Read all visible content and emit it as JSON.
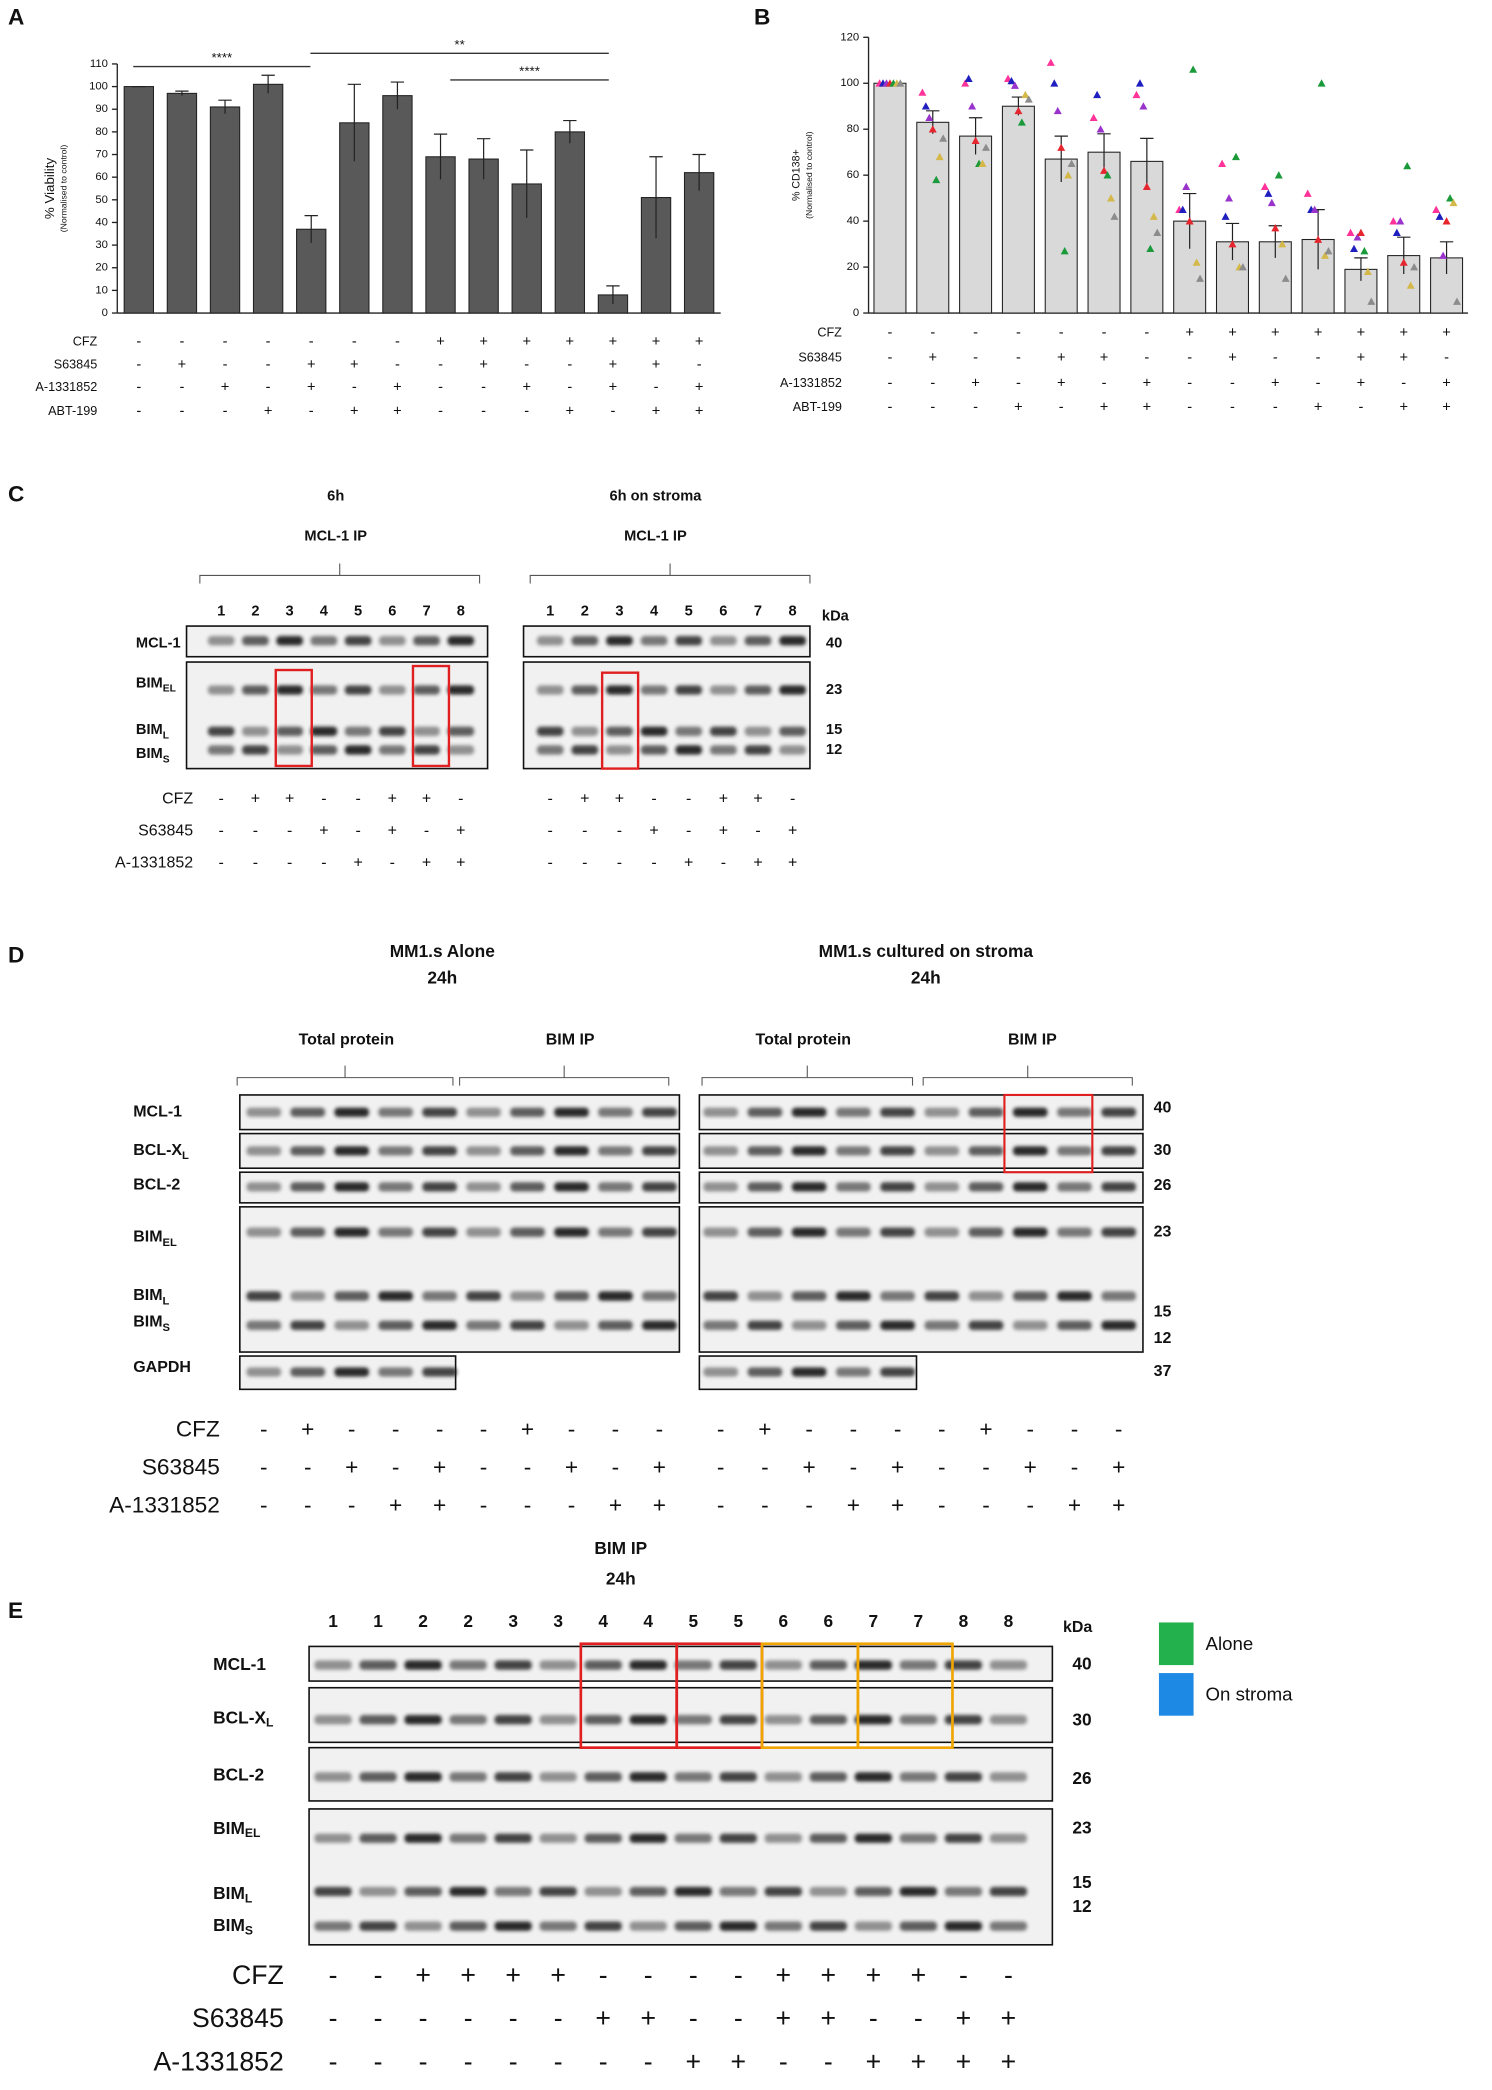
{
  "chart_data": [
    {
      "type": "bar",
      "panel": "A",
      "y_label": "% Viability",
      "y_sublabel": "(Normalised to control)",
      "categories": [
        null,
        null,
        null,
        null,
        null,
        null,
        null,
        null,
        null,
        null,
        null,
        null,
        null,
        null
      ],
      "values": [
        100,
        97,
        91,
        101,
        37,
        84,
        96,
        69,
        68,
        57,
        80,
        8,
        51,
        62
      ],
      "errors": [
        0,
        1,
        3,
        4,
        6,
        17,
        6,
        10,
        9,
        15,
        5,
        4,
        18,
        8
      ],
      "color": "#595959",
      "ylim": [
        0,
        110
      ],
      "yticks": [
        0,
        10,
        20,
        30,
        40,
        50,
        60,
        70,
        80,
        90,
        100,
        110
      ],
      "annotations": [
        "****",
        "**",
        "****"
      ],
      "conditions": [
        {
          "name": "CFZ",
          "signs": [
            "-",
            "-",
            "-",
            "-",
            "-",
            "-",
            "-",
            "+",
            "+",
            "+",
            "+",
            "+",
            "+",
            "+"
          ]
        },
        {
          "name": "S63845",
          "signs": [
            "-",
            "+",
            "-",
            "-",
            "+",
            "+",
            "-",
            "-",
            "+",
            "-",
            "-",
            "+",
            "+",
            "-"
          ]
        },
        {
          "name": "A-1331852",
          "signs": [
            "-",
            "-",
            "+",
            "-",
            "+",
            "-",
            "+",
            "-",
            "-",
            "+",
            "-",
            "+",
            "-",
            "+"
          ]
        },
        {
          "name": "ABT-199",
          "signs": [
            "-",
            "-",
            "-",
            "+",
            "-",
            "+",
            "+",
            "-",
            "-",
            "-",
            "+",
            "-",
            "+",
            "+"
          ]
        }
      ]
    },
    {
      "type": "bar",
      "panel": "B",
      "y_label": "% CD138+",
      "y_sublabel": "(Normalised to control)",
      "categories": [
        null,
        null,
        null,
        null,
        null,
        null,
        null,
        null,
        null,
        null,
        null,
        null,
        null,
        null
      ],
      "values": [
        100,
        83,
        77,
        90,
        67,
        70,
        66,
        40,
        31,
        31,
        32,
        19,
        25,
        24
      ],
      "errors": [
        0,
        5,
        8,
        4,
        10,
        8,
        10,
        12,
        8,
        7,
        13,
        5,
        8,
        7
      ],
      "color": "#d9d9d9",
      "ylim": [
        0,
        120
      ],
      "yticks": [
        0,
        20,
        40,
        60,
        80,
        100,
        120
      ],
      "points": [
        {
          "color": "#ff3399",
          "values": [
            100,
            96,
            100,
            102,
            109,
            85,
            95,
            45,
            65,
            55,
            52,
            35,
            40,
            45
          ]
        },
        {
          "color": "#1f1fbf",
          "values": [
            100,
            90,
            102,
            101,
            100,
            95,
            100,
            45,
            42,
            52,
            45,
            28,
            35,
            42
          ]
        },
        {
          "color": "#9933cc",
          "values": [
            100,
            85,
            90,
            99,
            88,
            80,
            90,
            55,
            50,
            48,
            45,
            33,
            40,
            25
          ]
        },
        {
          "color": "#e6262e",
          "values": [
            100,
            80,
            75,
            88,
            72,
            62,
            55,
            40,
            30,
            37,
            32,
            35,
            22,
            40
          ]
        },
        {
          "color": "#1a9a3a",
          "values": [
            100,
            58,
            65,
            83,
            27,
            60,
            28,
            106,
            68,
            60,
            100,
            27,
            64,
            50
          ]
        },
        {
          "color": "#d4b84a",
          "values": [
            100,
            68,
            65,
            95,
            60,
            50,
            42,
            22,
            20,
            30,
            25,
            18,
            12,
            48
          ]
        },
        {
          "color": "#8c8c8c",
          "values": [
            100,
            76,
            72,
            93,
            65,
            42,
            35,
            15,
            20,
            15,
            27,
            5,
            20,
            5
          ]
        }
      ],
      "conditions": [
        {
          "name": "CFZ",
          "signs": [
            "-",
            "-",
            "-",
            "-",
            "-",
            "-",
            "-",
            "+",
            "+",
            "+",
            "+",
            "+",
            "+",
            "+"
          ]
        },
        {
          "name": "S63845",
          "signs": [
            "-",
            "+",
            "-",
            "-",
            "+",
            "+",
            "-",
            "-",
            "+",
            "-",
            "-",
            "+",
            "+",
            "-"
          ]
        },
        {
          "name": "A-1331852",
          "signs": [
            "-",
            "-",
            "+",
            "-",
            "+",
            "-",
            "+",
            "-",
            "-",
            "+",
            "-",
            "+",
            "-",
            "+"
          ]
        },
        {
          "name": "ABT-199",
          "signs": [
            "-",
            "-",
            "-",
            "+",
            "-",
            "+",
            "+",
            "-",
            "-",
            "-",
            "+",
            "-",
            "+",
            "+"
          ]
        }
      ]
    }
  ],
  "panels": {
    "C": {
      "letter": "C",
      "unit": "kDa",
      "groups": [
        {
          "time": "6h",
          "ip": "MCL-1 IP",
          "color": "#27a35a",
          "lanes": [
            1,
            2,
            3,
            4,
            5,
            6,
            7,
            8
          ],
          "signs": [
            [
              "-",
              "+",
              "+",
              "-",
              "-",
              "+",
              "+",
              "-"
            ],
            [
              "-",
              "-",
              "-",
              "+",
              "-",
              "+",
              "-",
              "+"
            ],
            [
              "-",
              "-",
              "-",
              "-",
              "+",
              "-",
              "+",
              "+"
            ]
          ]
        },
        {
          "time": "6h on stroma",
          "ip": "MCL-1 IP",
          "color": "#2e75b6",
          "lanes": [
            1,
            2,
            3,
            4,
            5,
            6,
            7,
            8
          ],
          "signs": [
            [
              "-",
              "+",
              "+",
              "-",
              "-",
              "+",
              "+",
              "-"
            ],
            [
              "-",
              "-",
              "-",
              "+",
              "-",
              "+",
              "-",
              "+"
            ],
            [
              "-",
              "-",
              "-",
              "-",
              "+",
              "-",
              "+",
              "+"
            ]
          ]
        }
      ],
      "rows": [
        {
          "label": "MCL-1"
        },
        {
          "label": "BIM",
          "sub": "EL"
        },
        {
          "label": "BIM",
          "sub": "L"
        },
        {
          "label": "BIM",
          "sub": "S"
        }
      ],
      "markers": [
        40,
        23,
        15,
        12
      ],
      "treatments": [
        "CFZ",
        "S63845",
        "A-1331852"
      ]
    },
    "D": {
      "letter": "D",
      "groups": [
        {
          "title": "MM1.s Alone",
          "time": "24h",
          "color": "#27a35a",
          "sections": [
            "Total protein",
            "BIM IP"
          ],
          "signs": [
            [
              "-",
              "+",
              "-",
              "-",
              "-",
              "-",
              "+",
              "-",
              "-",
              "-"
            ],
            [
              "-",
              "-",
              "+",
              "-",
              "+",
              "-",
              "-",
              "+",
              "-",
              "+"
            ],
            [
              "-",
              "-",
              "-",
              "+",
              "+",
              "-",
              "-",
              "-",
              "+",
              "+"
            ]
          ]
        },
        {
          "title": "MM1.s cultured on stroma",
          "time": "24h",
          "color": "#2e75b6",
          "sections": [
            "Total protein",
            "BIM IP"
          ],
          "signs": [
            [
              "-",
              "+",
              "-",
              "-",
              "-",
              "-",
              "+",
              "-",
              "-",
              "-"
            ],
            [
              "-",
              "-",
              "+",
              "-",
              "+",
              "-",
              "-",
              "+",
              "-",
              "+"
            ],
            [
              "-",
              "-",
              "-",
              "+",
              "+",
              "-",
              "-",
              "-",
              "+",
              "+"
            ]
          ]
        }
      ],
      "rows": [
        {
          "label": "MCL-1"
        },
        {
          "label": "BCL-X",
          "sub": "L"
        },
        {
          "label": "BCL-2"
        },
        {
          "label": "BIM",
          "sub": "EL"
        },
        {
          "label": "BIM",
          "sub": "L"
        },
        {
          "label": "BIM",
          "sub": "S"
        },
        {
          "label": "GAPDH"
        }
      ],
      "markers": [
        40,
        30,
        26,
        23,
        15,
        12,
        37
      ],
      "treatments": [
        "CFZ",
        "S63845",
        "A-1331852"
      ]
    },
    "E": {
      "letter": "E",
      "title": "BIM IP",
      "time": "24h",
      "unit": "kDa",
      "lanes": [
        1,
        1,
        2,
        2,
        3,
        3,
        4,
        4,
        5,
        5,
        6,
        6,
        7,
        7,
        8,
        8
      ],
      "rows": [
        {
          "label": "MCL-1"
        },
        {
          "label": "BCL-X",
          "sub": "L"
        },
        {
          "label": "BCL-2"
        },
        {
          "label": "BIM",
          "sub": "EL"
        },
        {
          "label": "BIM",
          "sub": "L"
        },
        {
          "label": "BIM",
          "sub": "S"
        }
      ],
      "markers": [
        40,
        30,
        26,
        23,
        15,
        12
      ],
      "legend": [
        {
          "name": "Alone",
          "color": "#22b14c"
        },
        {
          "name": "On stroma",
          "color": "#1e88e5"
        }
      ],
      "treatments": [
        "CFZ",
        "S63845",
        "A-1331852"
      ],
      "signs": [
        [
          "-",
          "-",
          "+",
          "+",
          "+",
          "+",
          "-",
          "-",
          "-",
          "-",
          "+",
          "+",
          "+",
          "+",
          "-",
          "-"
        ],
        [
          "-",
          "-",
          "-",
          "-",
          "-",
          "-",
          "+",
          "+",
          "-",
          "-",
          "+",
          "+",
          "-",
          "-",
          "+",
          "+"
        ],
        [
          "-",
          "-",
          "-",
          "-",
          "-",
          "-",
          "-",
          "-",
          "+",
          "+",
          "-",
          "-",
          "+",
          "+",
          "+",
          "+"
        ]
      ]
    }
  }
}
